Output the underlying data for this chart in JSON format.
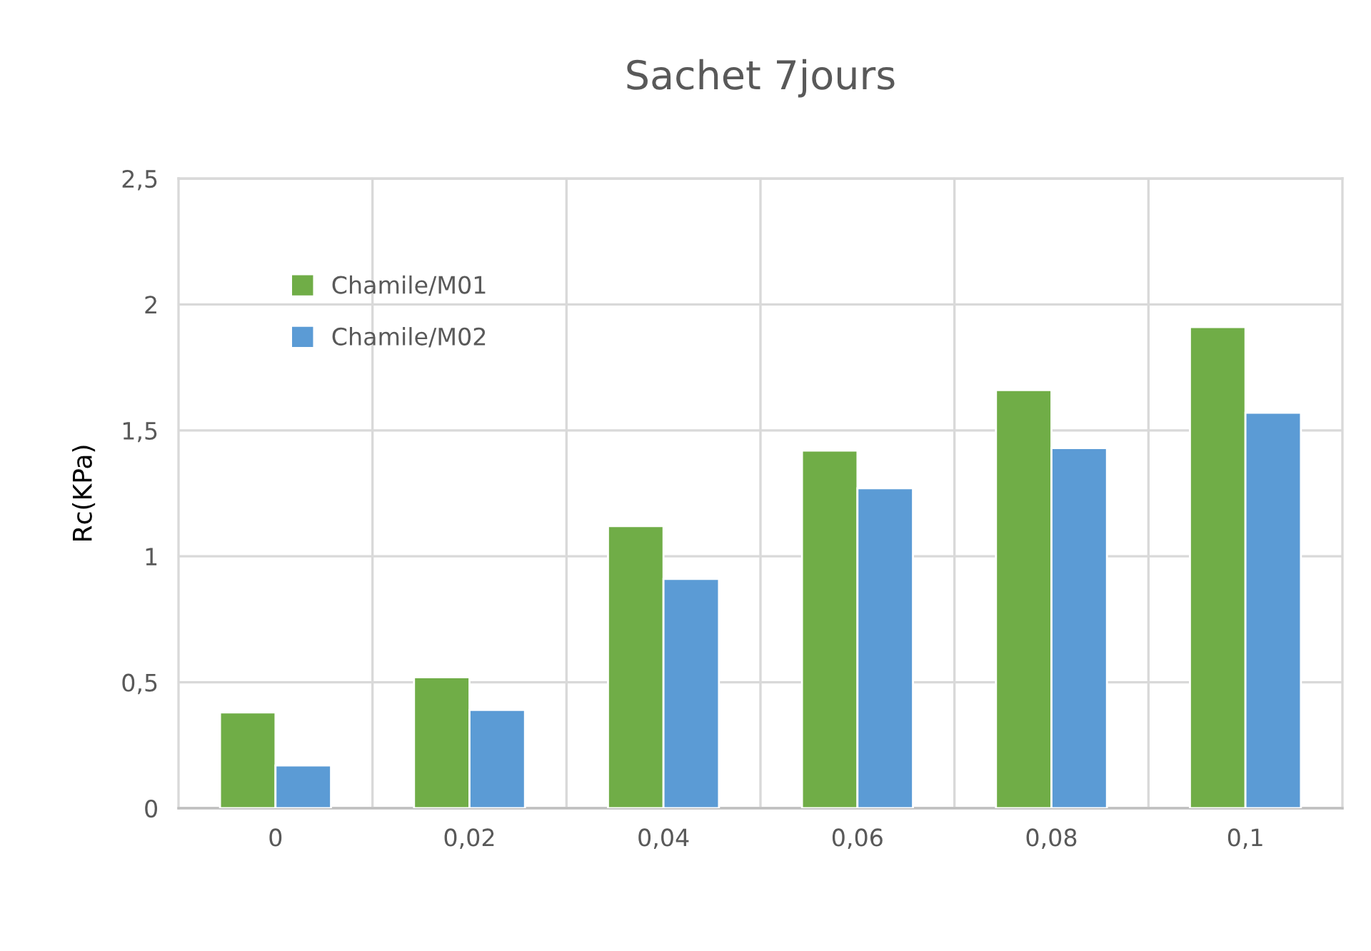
{
  "chart_data": {
    "type": "bar",
    "title": "Sachet 7jours",
    "ylabel": "Rc(KPa)",
    "categories": [
      "0",
      "0,02",
      "0,04",
      "0,06",
      "0,08",
      "0,1"
    ],
    "series": [
      {
        "name": "Chamile/M01",
        "color": "#70ad47",
        "values": [
          0.38,
          0.52,
          1.12,
          1.42,
          1.66,
          1.91
        ]
      },
      {
        "name": "Chamile/M02",
        "color": "#5b9bd5",
        "values": [
          0.17,
          0.39,
          0.91,
          1.27,
          1.43,
          1.57
        ]
      }
    ],
    "ylim": [
      0,
      2.5
    ],
    "yticks": [
      {
        "value": 0,
        "label": "0"
      },
      {
        "value": 0.5,
        "label": "0,5"
      },
      {
        "value": 1,
        "label": "1"
      },
      {
        "value": 1.5,
        "label": "1,5"
      },
      {
        "value": 2,
        "label": "2"
      },
      {
        "value": 2.5,
        "label": "2,5"
      }
    ],
    "grid": true,
    "legend": "top left"
  }
}
